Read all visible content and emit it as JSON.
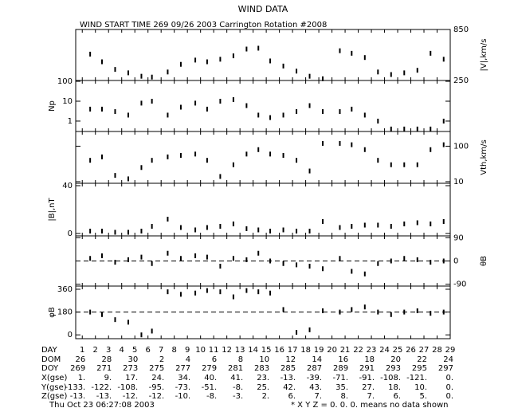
{
  "title": "WIND DATA",
  "subtitle": "WIND START TIME 269 09/26 2003 Carrington Rotation #2008",
  "x_axis": {
    "xlim": [
      0.5,
      29
    ],
    "xticks": [
      1,
      2,
      3,
      4,
      5,
      6,
      7,
      8,
      9,
      10,
      11,
      12,
      13,
      14,
      15,
      16,
      17,
      18,
      19,
      20,
      21,
      22,
      23,
      24,
      25,
      26,
      27,
      28,
      29
    ]
  },
  "chart_data": [
    {
      "type": "scatter",
      "ylabel": "|V|,km/s",
      "side": "right",
      "log": false,
      "ylim": [
        250,
        850
      ],
      "yticks": [
        250,
        850
      ],
      "x": [
        1.6,
        2.5,
        3.5,
        4.5,
        5.5,
        6.3,
        7.5,
        8.5,
        9.6,
        10.5,
        11.5,
        12.5,
        13.5,
        14.4,
        15.3,
        16.3,
        17.3,
        18.3,
        19.3,
        20.6,
        21.5,
        22.5,
        23.5,
        24.5,
        25.5,
        26.5,
        27.5,
        28.5
      ],
      "values": [
        560,
        470,
        380,
        340,
        300,
        290,
        350,
        440,
        490,
        470,
        500,
        540,
        620,
        630,
        480,
        420,
        360,
        300,
        270,
        600,
        570,
        520,
        350,
        320,
        340,
        370,
        570,
        500
      ]
    },
    {
      "type": "scatter",
      "ylabel": "Np",
      "side": "left",
      "log": true,
      "ylim": [
        0.3,
        110
      ],
      "yticks": [
        1,
        10,
        100
      ],
      "x": [
        1.6,
        2.5,
        3.5,
        4.5,
        5.5,
        6.3,
        7.5,
        8.5,
        9.6,
        10.5,
        11.5,
        12.5,
        13.5,
        14.4,
        15.3,
        16.3,
        17.3,
        18.3,
        19.3,
        20.6,
        21.5,
        22.5,
        23.5,
        24.5,
        25.5,
        26.5,
        27.5,
        28.5
      ],
      "values": [
        4,
        4,
        3,
        2,
        8,
        10,
        2,
        5,
        8,
        4,
        10,
        12,
        6,
        2,
        1.5,
        2,
        3,
        6,
        3,
        3,
        4,
        2,
        1,
        0.4,
        0.4,
        0.4,
        0.4,
        1
      ]
    },
    {
      "type": "scatter",
      "ylabel": "Vth,km/s",
      "side": "right",
      "log": true,
      "ylim": [
        9,
        260
      ],
      "yticks": [
        10,
        100
      ],
      "x": [
        1.6,
        2.5,
        3.5,
        4.5,
        5.5,
        6.3,
        7.5,
        8.5,
        9.6,
        10.5,
        11.5,
        12.5,
        13.5,
        14.4,
        15.3,
        16.3,
        17.3,
        18.3,
        19.3,
        20.6,
        21.5,
        22.5,
        23.5,
        24.5,
        25.5,
        26.5,
        27.5,
        28.5
      ],
      "values": [
        40,
        50,
        15,
        12,
        25,
        40,
        50,
        55,
        60,
        40,
        14,
        30,
        60,
        80,
        60,
        55,
        40,
        20,
        120,
        120,
        110,
        80,
        40,
        30,
        30,
        30,
        80,
        110
      ]
    },
    {
      "type": "scatter",
      "ylabel": "|B|,nT",
      "side": "left",
      "log": false,
      "ylim": [
        -2,
        42
      ],
      "yticks": [
        0,
        40
      ],
      "x": [
        1.6,
        2.5,
        3.5,
        4.5,
        5.5,
        6.3,
        7.5,
        8.5,
        9.6,
        10.5,
        11.5,
        12.5,
        13.5,
        14.4,
        15.3,
        16.3,
        17.3,
        18.3,
        19.3,
        20.6,
        21.5,
        22.5,
        23.5,
        24.5,
        25.5,
        26.5,
        27.5,
        28.5
      ],
      "values": [
        2,
        2,
        1,
        1,
        2,
        6,
        12,
        5,
        3,
        5,
        6,
        8,
        4,
        3,
        2,
        3,
        2,
        2,
        10,
        5,
        6,
        7,
        7,
        6,
        8,
        9,
        8,
        10
      ]
    },
    {
      "type": "scatter",
      "ylabel": "θB",
      "side": "right",
      "log": false,
      "ylim": [
        -97,
        97
      ],
      "yticks": [
        90,
        0,
        -90
      ],
      "reference_line": 0,
      "x": [
        1.6,
        2.5,
        3.5,
        4.5,
        5.5,
        6.3,
        7.5,
        8.5,
        9.6,
        10.5,
        11.5,
        12.5,
        13.5,
        14.4,
        15.3,
        16.3,
        17.3,
        18.3,
        19.3,
        20.6,
        21.5,
        22.5,
        23.5,
        24.5,
        25.5,
        26.5,
        27.5,
        28.5
      ],
      "values": [
        10,
        20,
        -5,
        5,
        15,
        -10,
        30,
        10,
        20,
        15,
        -20,
        10,
        5,
        30,
        0,
        -10,
        -15,
        -20,
        -30,
        10,
        -40,
        -50,
        -10,
        0,
        10,
        5,
        -5,
        0
      ]
    },
    {
      "type": "scatter",
      "ylabel": "φB",
      "side": "left",
      "log": false,
      "ylim": [
        -30,
        385
      ],
      "yticks": [
        0,
        180,
        360
      ],
      "reference_line": 180,
      "x": [
        1.6,
        2.5,
        3.5,
        4.5,
        5.5,
        6.3,
        7.5,
        8.5,
        9.6,
        10.5,
        11.5,
        12.5,
        13.5,
        14.4,
        15.3,
        16.3,
        17.3,
        18.3,
        19.3,
        20.6,
        21.5,
        22.5,
        23.5,
        24.5,
        25.5,
        26.5,
        27.5,
        28.5
      ],
      "values": [
        180,
        160,
        120,
        100,
        0,
        30,
        340,
        320,
        330,
        350,
        340,
        300,
        350,
        340,
        330,
        200,
        20,
        40,
        190,
        180,
        200,
        220,
        180,
        160,
        180,
        190,
        170,
        180
      ]
    }
  ],
  "table": {
    "rows": [
      {
        "label": "DAY",
        "step": 1,
        "cells": [
          1,
          2,
          3,
          4,
          5,
          6,
          7,
          8,
          9,
          10,
          11,
          12,
          13,
          14,
          15,
          16,
          17,
          18,
          19,
          20,
          21,
          22,
          23,
          24,
          25,
          26,
          27,
          28,
          29
        ]
      },
      {
        "label": "DOM",
        "step": 2,
        "cells": [
          26,
          28,
          30,
          2,
          4,
          6,
          8,
          10,
          12,
          14,
          16,
          18,
          20,
          22,
          24
        ]
      },
      {
        "label": "DOY",
        "step": 2,
        "cells": [
          269,
          271,
          273,
          275,
          277,
          279,
          281,
          283,
          285,
          287,
          289,
          291,
          293,
          295,
          297
        ]
      },
      {
        "label": "X(gse)",
        "step": 2,
        "cells": [
          "1.",
          "9.",
          "17.",
          "24.",
          "34.",
          "40.",
          "41.",
          "23.",
          "-13.",
          "-39.",
          "-71.",
          "-91.",
          "-108.",
          "-121.",
          "0."
        ]
      },
      {
        "label": "Y(gse)",
        "step": 2,
        "cells": [
          "-133.",
          "-122.",
          "-108.",
          "-95.",
          "-73.",
          "-51.",
          "-8.",
          "25.",
          "42.",
          "43.",
          "35.",
          "27.",
          "18.",
          "10.",
          "0."
        ]
      },
      {
        "label": "Z(gse)",
        "step": 2,
        "cells": [
          "-13.",
          "-13.",
          "-12.",
          "-12.",
          "-10.",
          "-8.",
          "-3.",
          "2.",
          "6.",
          "7.",
          "8.",
          "7.",
          "6.",
          "5.",
          "0."
        ]
      }
    ]
  },
  "footer": {
    "date": "Thu Oct 23 06:27:08 2003",
    "note": "* X Y Z = 0. 0. 0. means no data shown"
  }
}
